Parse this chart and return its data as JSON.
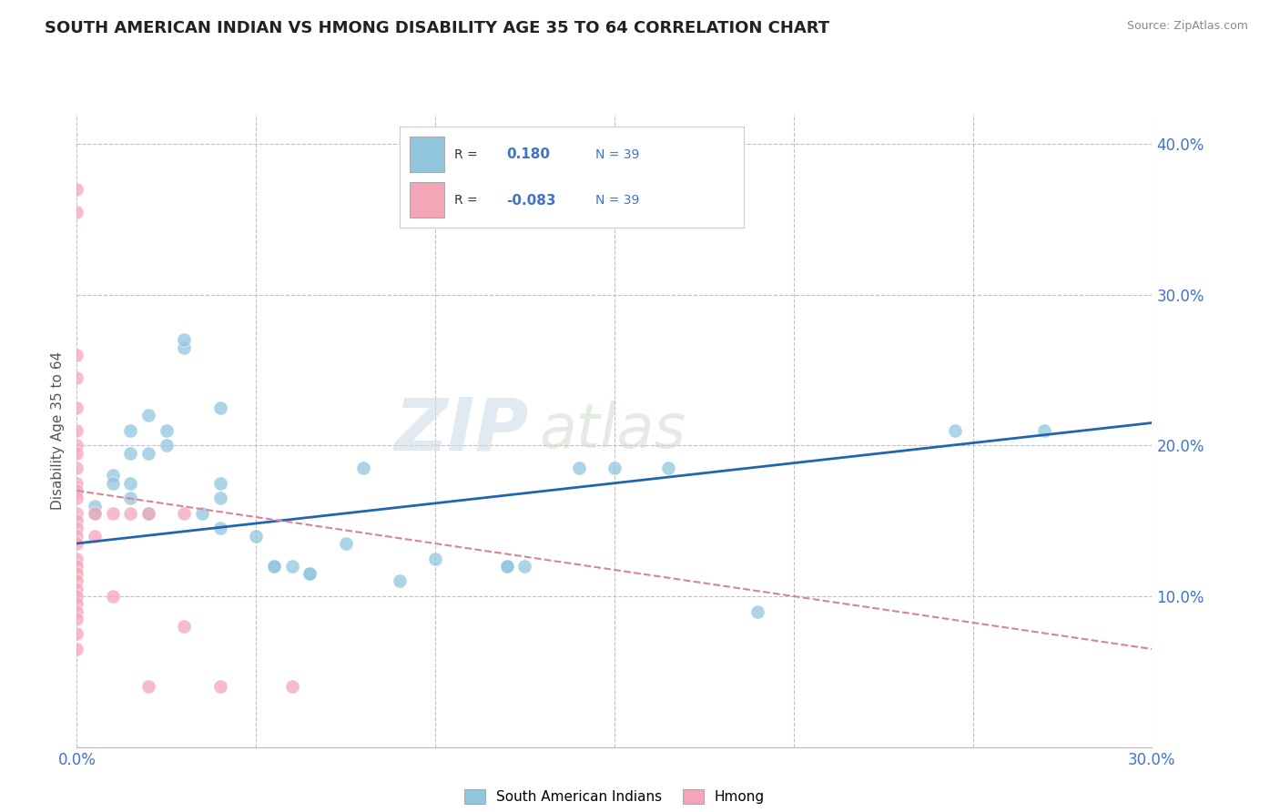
{
  "title": "SOUTH AMERICAN INDIAN VS HMONG DISABILITY AGE 35 TO 64 CORRELATION CHART",
  "source": "Source: ZipAtlas.com",
  "ylabel": "Disability Age 35 to 64",
  "xlim": [
    0.0,
    0.3
  ],
  "ylim": [
    0.0,
    0.42
  ],
  "x_ticks": [
    0.0,
    0.05,
    0.1,
    0.15,
    0.2,
    0.25,
    0.3
  ],
  "y_ticks": [
    0.0,
    0.1,
    0.2,
    0.3,
    0.4
  ],
  "y_tick_labels_right": [
    "",
    "10.0%",
    "20.0%",
    "30.0%",
    "40.0%"
  ],
  "x_tick_labels": [
    "0.0%",
    "",
    "",
    "",
    "",
    "",
    "30.0%"
  ],
  "legend_labels": [
    "South American Indians",
    "Hmong"
  ],
  "blue_color": "#92c5de",
  "pink_color": "#f4a6b8",
  "blue_line_color": "#2166ac",
  "pink_line_color": "#d6849a",
  "watermark_top": "ZIP",
  "watermark_bot": "atlas",
  "blue_dots": [
    [
      0.005,
      0.155
    ],
    [
      0.005,
      0.16
    ],
    [
      0.01,
      0.18
    ],
    [
      0.01,
      0.175
    ],
    [
      0.015,
      0.21
    ],
    [
      0.015,
      0.195
    ],
    [
      0.015,
      0.175
    ],
    [
      0.015,
      0.165
    ],
    [
      0.02,
      0.22
    ],
    [
      0.02,
      0.195
    ],
    [
      0.02,
      0.155
    ],
    [
      0.025,
      0.21
    ],
    [
      0.025,
      0.2
    ],
    [
      0.03,
      0.265
    ],
    [
      0.03,
      0.27
    ],
    [
      0.035,
      0.155
    ],
    [
      0.04,
      0.225
    ],
    [
      0.04,
      0.175
    ],
    [
      0.04,
      0.165
    ],
    [
      0.04,
      0.145
    ],
    [
      0.05,
      0.14
    ],
    [
      0.055,
      0.12
    ],
    [
      0.055,
      0.12
    ],
    [
      0.06,
      0.12
    ],
    [
      0.065,
      0.115
    ],
    [
      0.065,
      0.115
    ],
    [
      0.075,
      0.135
    ],
    [
      0.08,
      0.185
    ],
    [
      0.09,
      0.11
    ],
    [
      0.1,
      0.125
    ],
    [
      0.12,
      0.12
    ],
    [
      0.12,
      0.12
    ],
    [
      0.125,
      0.12
    ],
    [
      0.14,
      0.185
    ],
    [
      0.15,
      0.185
    ],
    [
      0.165,
      0.185
    ],
    [
      0.19,
      0.09
    ],
    [
      0.245,
      0.21
    ],
    [
      0.27,
      0.21
    ]
  ],
  "pink_dots": [
    [
      0.0,
      0.355
    ],
    [
      0.0,
      0.37
    ],
    [
      0.0,
      0.26
    ],
    [
      0.0,
      0.245
    ],
    [
      0.0,
      0.225
    ],
    [
      0.0,
      0.21
    ],
    [
      0.0,
      0.2
    ],
    [
      0.0,
      0.195
    ],
    [
      0.0,
      0.185
    ],
    [
      0.0,
      0.175
    ],
    [
      0.0,
      0.17
    ],
    [
      0.0,
      0.165
    ],
    [
      0.0,
      0.155
    ],
    [
      0.0,
      0.15
    ],
    [
      0.0,
      0.145
    ],
    [
      0.0,
      0.14
    ],
    [
      0.0,
      0.135
    ],
    [
      0.0,
      0.125
    ],
    [
      0.0,
      0.12
    ],
    [
      0.0,
      0.115
    ],
    [
      0.0,
      0.11
    ],
    [
      0.0,
      0.105
    ],
    [
      0.0,
      0.1
    ],
    [
      0.0,
      0.095
    ],
    [
      0.0,
      0.09
    ],
    [
      0.0,
      0.085
    ],
    [
      0.0,
      0.075
    ],
    [
      0.0,
      0.065
    ],
    [
      0.005,
      0.155
    ],
    [
      0.005,
      0.14
    ],
    [
      0.01,
      0.155
    ],
    [
      0.01,
      0.1
    ],
    [
      0.015,
      0.155
    ],
    [
      0.02,
      0.155
    ],
    [
      0.02,
      0.04
    ],
    [
      0.03,
      0.155
    ],
    [
      0.03,
      0.08
    ],
    [
      0.04,
      0.04
    ],
    [
      0.06,
      0.04
    ]
  ],
  "blue_trend": [
    0.0,
    0.135,
    0.3,
    0.215
  ],
  "pink_trend": [
    0.0,
    0.17,
    0.3,
    0.065
  ],
  "background_color": "#ffffff",
  "grid_color": "#c0c0c0",
  "tick_color": "#4472c4",
  "title_color": "#222222",
  "source_color": "#888888",
  "ylabel_color": "#555555"
}
